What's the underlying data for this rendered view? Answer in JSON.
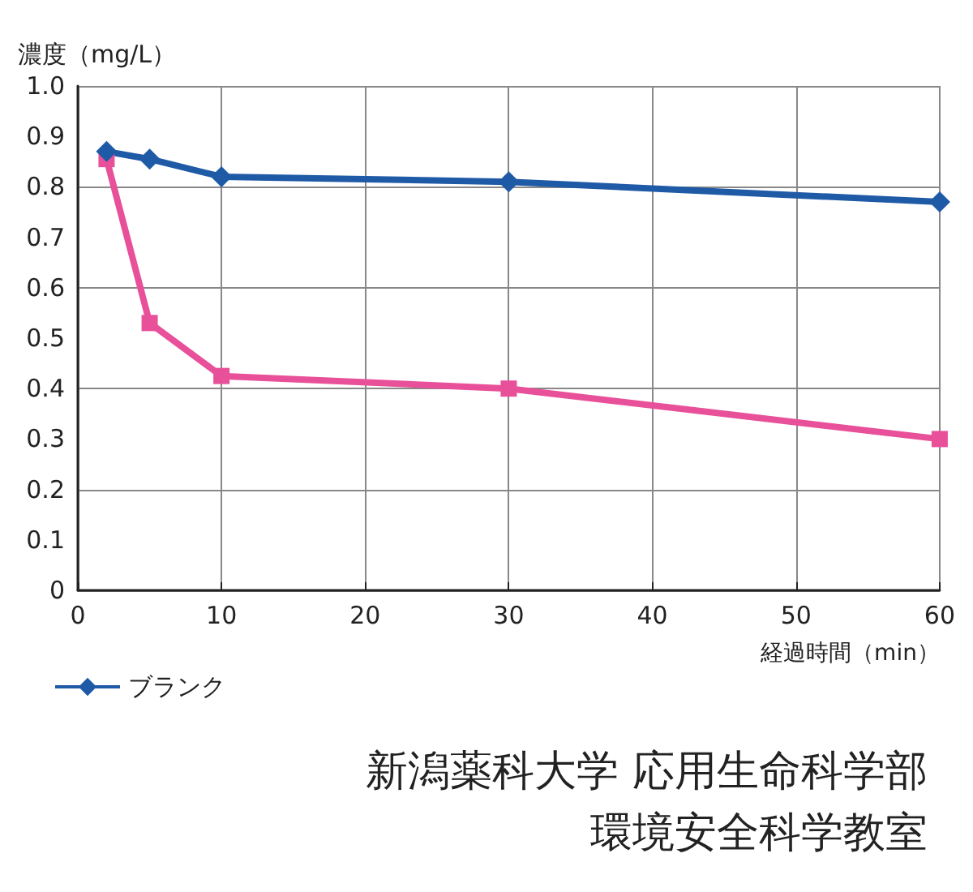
{
  "chart_data": {
    "type": "line",
    "ylabel": "濃度（mg/L）",
    "xlabel": "経過時間（min）",
    "xlim": [
      0,
      60
    ],
    "xticks": [
      0,
      10,
      20,
      30,
      40,
      50,
      60
    ],
    "ylim": [
      0,
      1.0
    ],
    "yticks": [
      {
        "value": 0,
        "label": "0"
      },
      {
        "value": 0.1,
        "label": "0.1"
      },
      {
        "value": 0.2,
        "label": "0.2"
      },
      {
        "value": 0.3,
        "label": "0.3"
      },
      {
        "value": 0.4,
        "label": "0.4"
      },
      {
        "value": 0.5,
        "label": "0.5"
      },
      {
        "value": 0.6,
        "label": "0.6"
      },
      {
        "value": 0.7,
        "label": "0.7"
      },
      {
        "value": 0.8,
        "label": "0.8"
      },
      {
        "value": 0.9,
        "label": "0.9"
      },
      {
        "value": 1.0,
        "label": "1.0"
      }
    ],
    "x": [
      2,
      5,
      10,
      30,
      60
    ],
    "series": [
      {
        "color": "#e8509a",
        "marker": "square",
        "values": [
          0.855,
          0.53,
          0.425,
          0.4,
          0.3
        ]
      },
      {
        "name": "ブランク",
        "color": "#1f5aa6",
        "marker": "diamond",
        "values": [
          0.87,
          0.855,
          0.82,
          0.81,
          0.77
        ]
      }
    ],
    "grid": true,
    "legend": "bottom left",
    "line_style": "solid",
    "annotations": [
      "新潟薬科大学 応用生命科学部",
      "環境安全科学教室"
    ]
  }
}
